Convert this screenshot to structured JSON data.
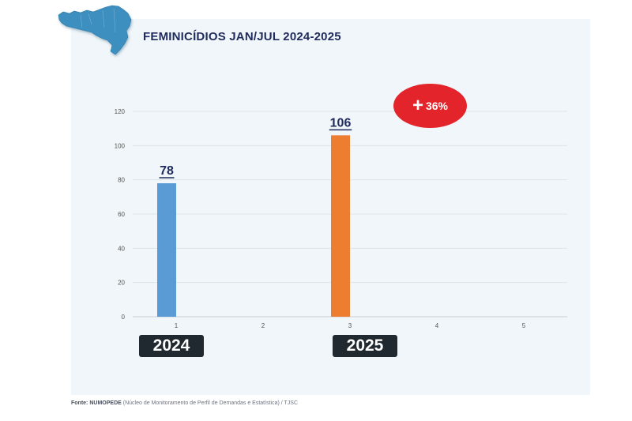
{
  "title": "FEMINICÍDIOS JAN/JUL 2024-2025",
  "increase_badge": {
    "symbol": "+",
    "text": "36%"
  },
  "year_labels": [
    "2024",
    "2025"
  ],
  "source": {
    "prefix": "Fonte:",
    "org": "NUMOPEDE",
    "detail": "(Núcleo de Monitoramento de Perfil de Demandas e Estatística) / TJSC"
  },
  "colors": {
    "bar_2024": "#5b9bd5",
    "bar_2025": "#ed7d31",
    "title": "#1e2b5c",
    "badge": "#e3242b",
    "map": "#3d8fc0"
  },
  "chart_data": {
    "type": "bar",
    "categories": [
      "1",
      "2",
      "3",
      "4",
      "5"
    ],
    "values": [
      78,
      null,
      106,
      null,
      null
    ],
    "data_labels": [
      "78",
      "",
      "106",
      "",
      ""
    ],
    "ylim": [
      0,
      120
    ],
    "yticks": [
      0,
      20,
      40,
      60,
      80,
      100,
      120
    ],
    "grid": true,
    "xlabel": "",
    "ylabel": ""
  }
}
